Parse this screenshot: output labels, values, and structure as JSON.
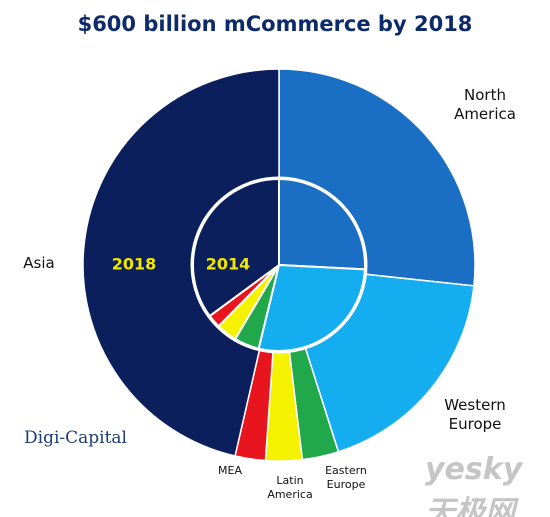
{
  "chart_data": {
    "type": "donut",
    "title": "$600 billion mCommerce by 2018",
    "categories": [
      "North America",
      "Western Europe",
      "Eastern Europe",
      "Latin America",
      "MEA",
      "Asia"
    ],
    "colors": [
      "#1a6fc4",
      "#14adf0",
      "#21a84a",
      "#f5f200",
      "#e8141e",
      "#0a1f5c"
    ],
    "series": [
      {
        "name": "2018",
        "values": [
          26.7,
          18.4,
          3.0,
          3.0,
          2.5,
          46.4
        ]
      },
      {
        "name": "2014",
        "values": [
          25.8,
          28.0,
          4.7,
          3.9,
          2.5,
          35.1
        ]
      }
    ],
    "source": "Digi-Capital",
    "watermark": "yesky 天极网"
  }
}
